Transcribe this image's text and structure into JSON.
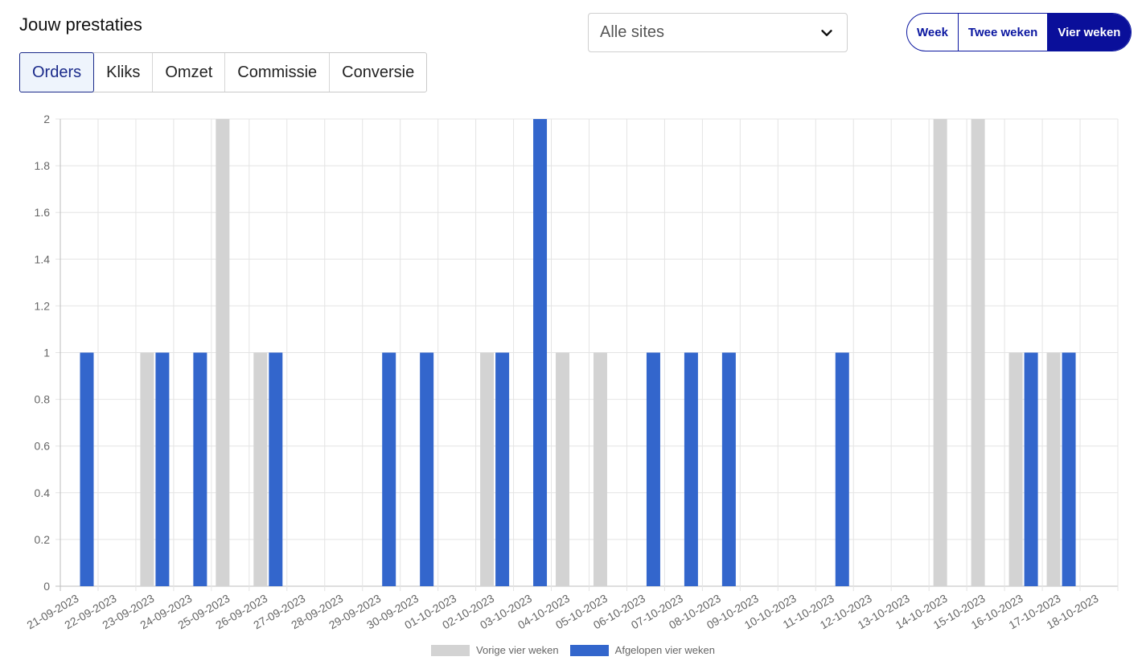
{
  "header": {
    "title": "Jouw prestaties"
  },
  "metric_tabs": [
    {
      "label": "Orders",
      "active": true
    },
    {
      "label": "Kliks",
      "active": false
    },
    {
      "label": "Omzet",
      "active": false
    },
    {
      "label": "Commissie",
      "active": false
    },
    {
      "label": "Conversie",
      "active": false
    }
  ],
  "site_select": {
    "value": "Alle sites",
    "icon": "chevron-down-icon"
  },
  "period_buttons": [
    {
      "label": "Week",
      "active": false
    },
    {
      "label": "Twee weken",
      "active": false
    },
    {
      "label": "Vier weken",
      "active": true
    }
  ],
  "colors": {
    "previous": "#d3d3d3",
    "current": "#3366cc",
    "accent": "#0a16a0"
  },
  "chart_data": {
    "type": "bar",
    "categories": [
      "21-09-2023",
      "22-09-2023",
      "23-09-2023",
      "24-09-2023",
      "25-09-2023",
      "26-09-2023",
      "27-09-2023",
      "28-09-2023",
      "29-09-2023",
      "30-09-2023",
      "01-10-2023",
      "02-10-2023",
      "03-10-2023",
      "04-10-2023",
      "05-10-2023",
      "06-10-2023",
      "07-10-2023",
      "08-10-2023",
      "09-10-2023",
      "10-10-2023",
      "11-10-2023",
      "12-10-2023",
      "13-10-2023",
      "14-10-2023",
      "15-10-2023",
      "16-10-2023",
      "17-10-2023",
      "18-10-2023"
    ],
    "series": [
      {
        "name": "Vorige vier weken",
        "color": "#d3d3d3",
        "values": [
          0,
          0,
          1,
          0,
          2,
          1,
          0,
          0,
          0,
          0,
          0,
          1,
          0,
          1,
          1,
          0,
          0,
          0,
          0,
          0,
          0,
          0,
          0,
          2,
          2,
          1,
          1,
          0
        ]
      },
      {
        "name": "Afgelopen vier weken",
        "color": "#3366cc",
        "values": [
          1,
          0,
          1,
          1,
          0,
          1,
          0,
          0,
          1,
          1,
          0,
          1,
          2,
          0,
          0,
          1,
          1,
          1,
          0,
          0,
          1,
          0,
          0,
          0,
          0,
          1,
          1,
          0
        ]
      }
    ],
    "y_ticks": [
      "0",
      "0.2",
      "0.4",
      "0.6",
      "0.8",
      "1",
      "1.2",
      "1.4",
      "1.6",
      "1.8",
      "2"
    ],
    "ylim": [
      0,
      2
    ],
    "grid": true,
    "legend_position": "bottom"
  }
}
